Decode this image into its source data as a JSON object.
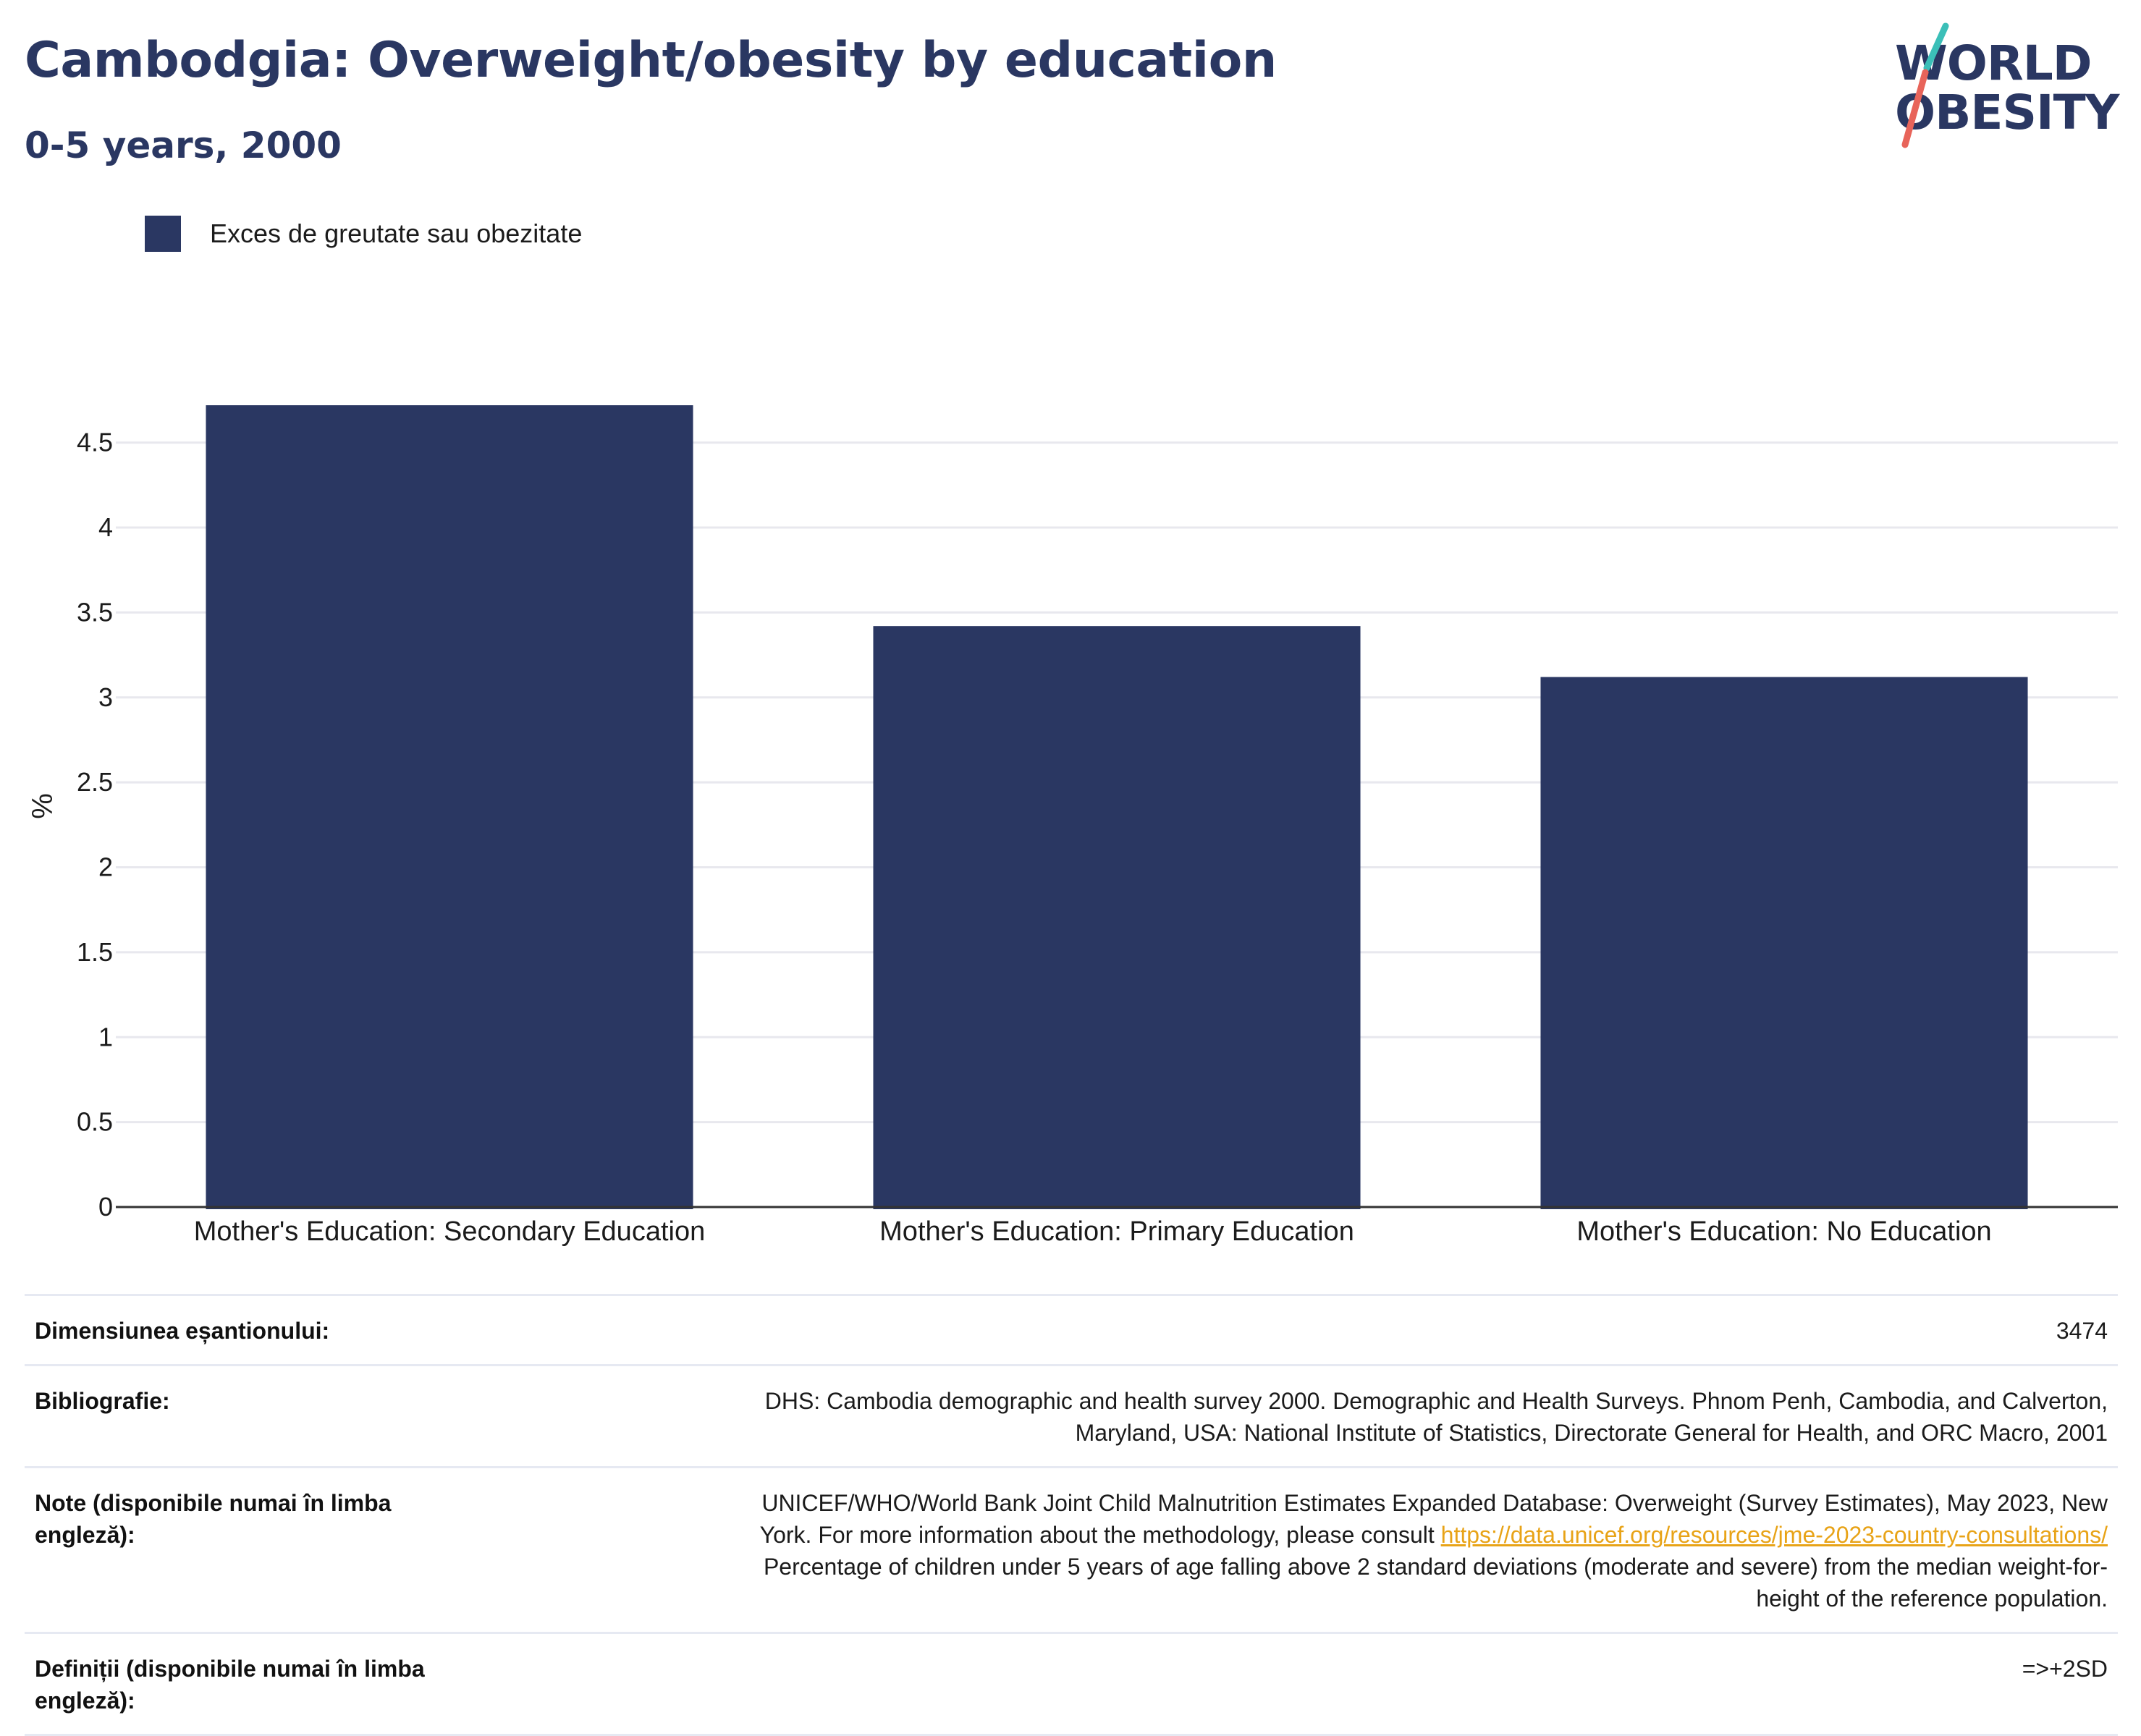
{
  "header": {
    "title": "Cambodgia: Overweight/obesity by education",
    "subtitle": "0-5 years, 2000"
  },
  "logo": {
    "line1": "WORLD",
    "line2": "OBESITY",
    "accent_teal": "#3bbfb8",
    "accent_red": "#e8645a"
  },
  "legend": {
    "label": "Exces de greutate sau obezitate",
    "color": "#2a3762"
  },
  "chart_data": {
    "type": "bar",
    "categories": [
      "Mother's Education: Secondary Education",
      "Mother's Education: Primary Education",
      "Mother's Education: No Education"
    ],
    "series": [
      {
        "name": "Exces de greutate sau obezitate",
        "values": [
          4.72,
          3.42,
          3.12
        ],
        "color": "#2a3762"
      }
    ],
    "title": "Cambodgia: Overweight/obesity by education",
    "subtitle": "0-5 years, 2000",
    "xlabel": "",
    "ylabel": "%",
    "ylim": [
      0,
      4.72
    ],
    "yticks": [
      0,
      0.5,
      1,
      1.5,
      2,
      2.5,
      3,
      3.5,
      4,
      4.5
    ],
    "ytick_labels": [
      "0",
      "0.5",
      "1",
      "1.5",
      "2",
      "2.5",
      "3",
      "3.5",
      "4",
      "4.5"
    ],
    "grid": true,
    "legend_position": "top-left"
  },
  "info": {
    "sample_size": {
      "label": "Dimensiunea eșantionului:",
      "value": "3474"
    },
    "bibliography": {
      "label": "Bibliografie:",
      "line1": "DHS: Cambodia demographic and health survey 2000. Demographic and Health Surveys. Phnom Penh, Cambodia, and Calverton,",
      "line2": "Maryland, USA: National Institute of Statistics, Directorate General for Health, and ORC Macro, 2001"
    },
    "notes": {
      "label": "Note (disponibile numai în limba engleză):",
      "line1": "UNICEF/WHO/World Bank Joint Child Malnutrition Estimates Expanded Database: Overweight (Survey Estimates), May 2023, New",
      "line2_prefix": "York. For more information about the methodology, please consult ",
      "link": "https://data.unicef.org/resources/jme-2023-country-consultations/",
      "line3": "Percentage of children under 5 years of age falling above 2 standard deviations (moderate and severe) from the median weight-for-",
      "line4": "height of the reference population."
    },
    "definitions": {
      "label": "Definiții (disponibile numai în limba engleză):",
      "value": "=>+2SD"
    }
  }
}
